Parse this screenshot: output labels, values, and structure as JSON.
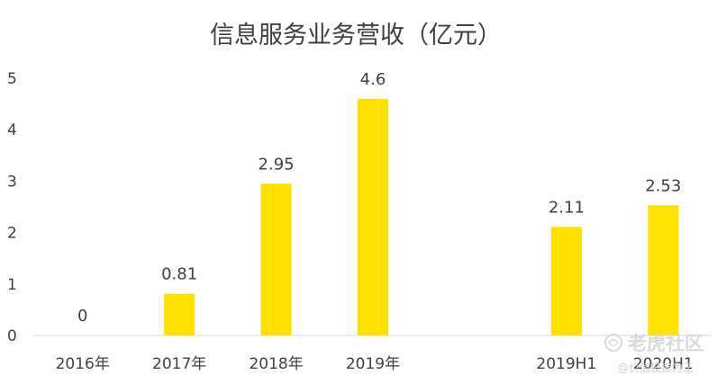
{
  "chart_data": {
    "type": "bar",
    "title": "信息服务业务营收（亿元）",
    "xlabel": "",
    "ylabel": "",
    "ylim": [
      0,
      5
    ],
    "yticks": [
      0,
      1,
      2,
      3,
      4,
      5
    ],
    "grid": false,
    "legend": "none",
    "categories": [
      "2016年",
      "2017年",
      "2018年",
      "2019年",
      "",
      "2019H1",
      "2020H1"
    ],
    "values": [
      0,
      0.81,
      2.95,
      4.6,
      null,
      2.11,
      2.53
    ],
    "data_labels": [
      "0",
      "0.81",
      "2.95",
      "4.6",
      "",
      "2.11",
      "2.53"
    ],
    "bar_color": "#FFE000"
  },
  "watermark": {
    "brand": "老虎社区",
    "handle": "@价值投资为王",
    "icon": "tiger-logo-icon"
  }
}
